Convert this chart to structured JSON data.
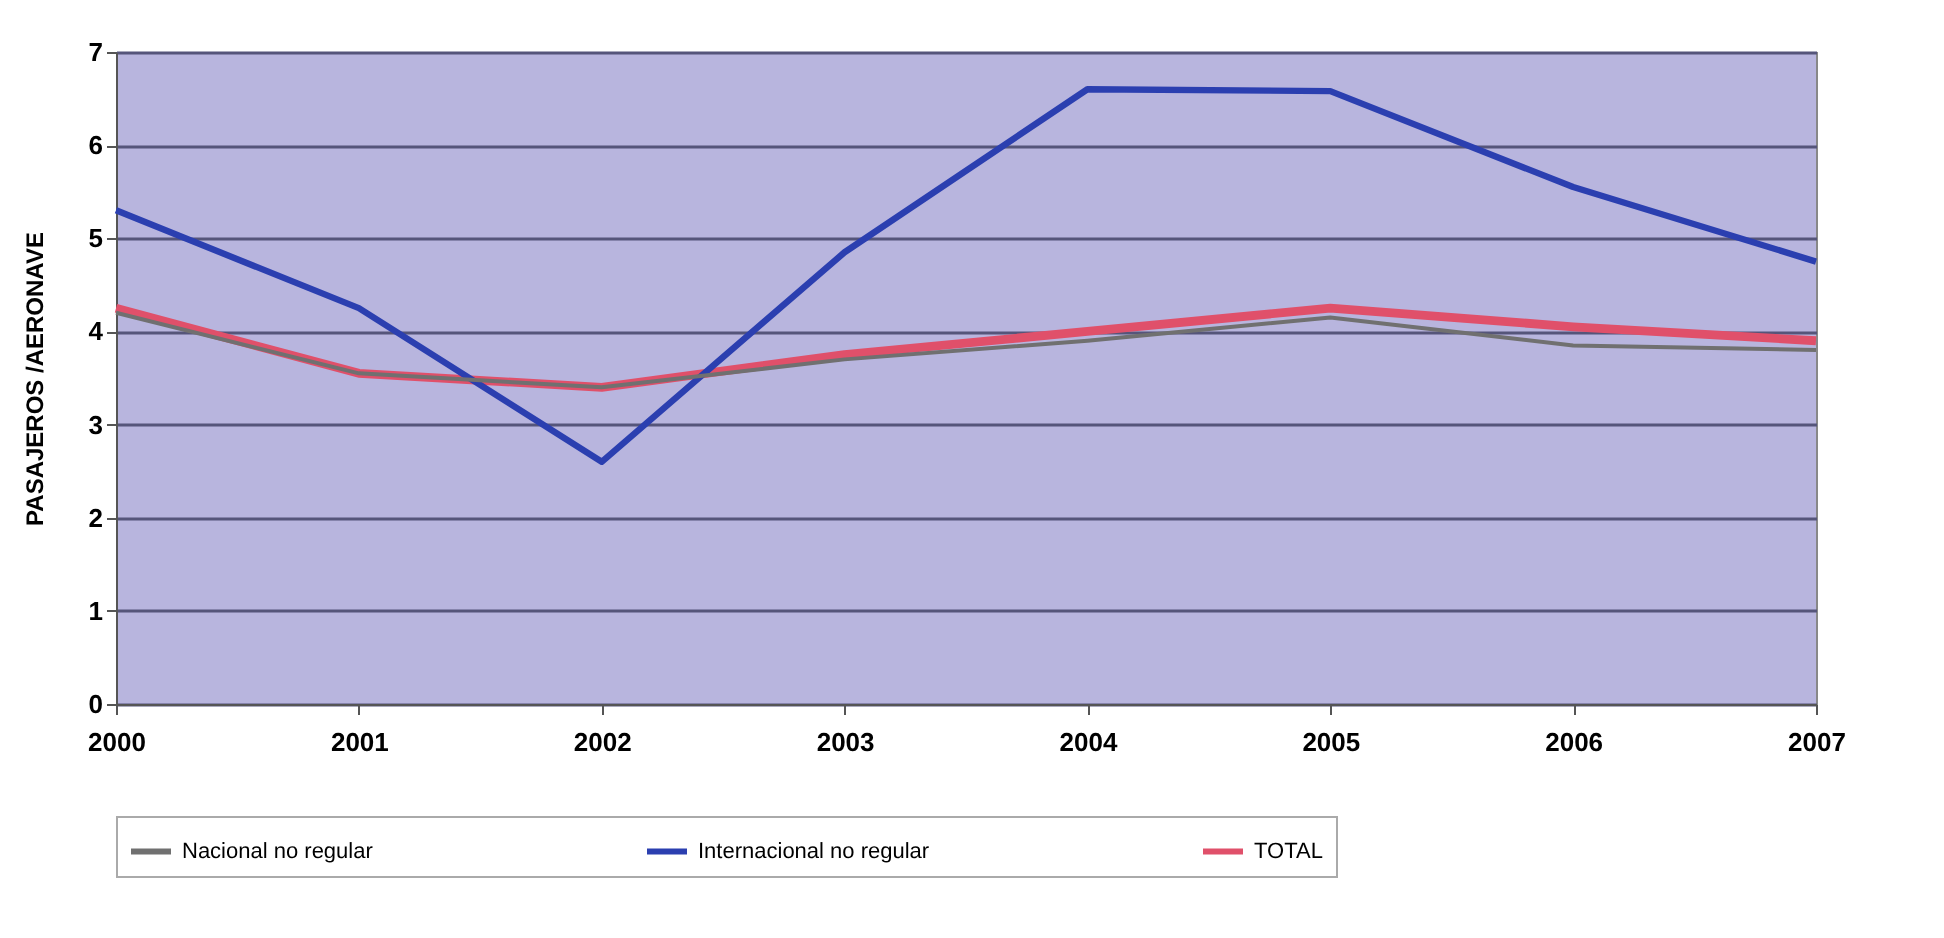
{
  "chart_data": {
    "type": "line",
    "ylabel": "PASAJEROS /AERONAVE",
    "categories": [
      "2000",
      "2001",
      "2002",
      "2003",
      "2004",
      "2005",
      "2006",
      "2007"
    ],
    "series": [
      {
        "name": "Nacional no regular",
        "color": "#707070",
        "values": [
          4.2,
          3.55,
          3.4,
          3.7,
          3.9,
          4.15,
          3.85,
          3.8
        ]
      },
      {
        "name": "Internacional no regular",
        "color": "#2b3fb0",
        "values": [
          5.3,
          4.25,
          2.6,
          4.85,
          6.6,
          6.58,
          5.55,
          4.75
        ]
      },
      {
        "name": "TOTAL",
        "color": "#e0506a",
        "values": [
          4.25,
          3.55,
          3.4,
          3.75,
          4.0,
          4.25,
          4.05,
          3.9
        ]
      }
    ],
    "ylim": [
      0,
      7
    ],
    "yticks": [
      0,
      1,
      2,
      3,
      4,
      5,
      6,
      7
    ],
    "grid": "y",
    "legend": "bottom",
    "marker": "none",
    "line_style": "solid"
  }
}
